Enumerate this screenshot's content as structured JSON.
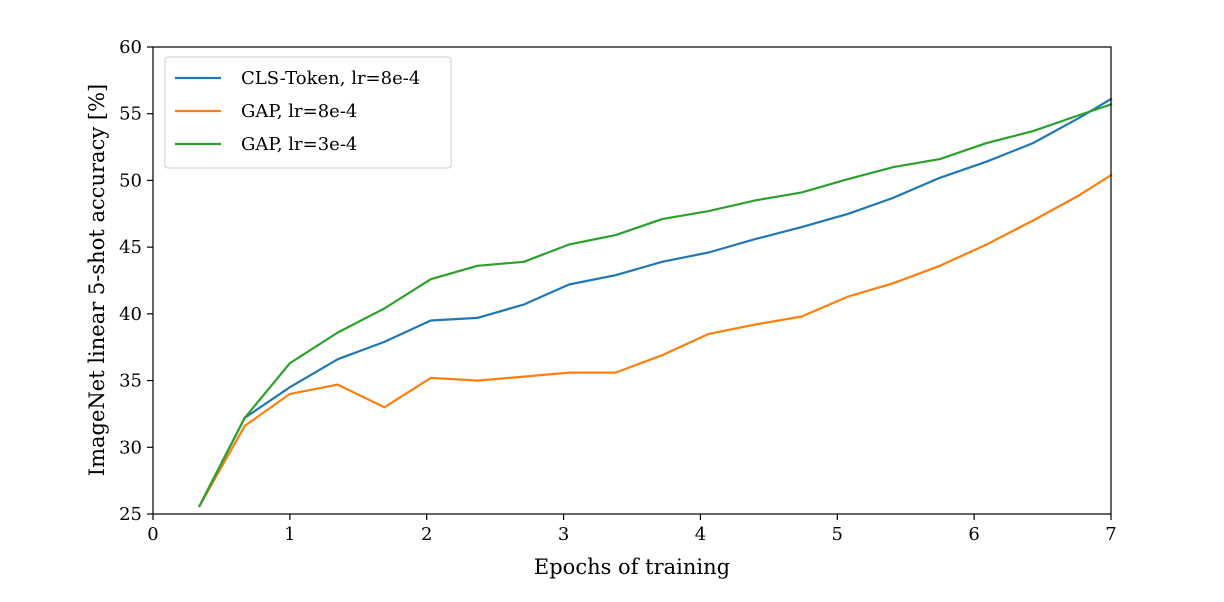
{
  "chart_data": {
    "type": "line",
    "title": "",
    "xlabel": "Epochs of training",
    "ylabel": "ImageNet linear 5-shot accuracy [%]",
    "xlim": [
      0,
      7
    ],
    "ylim": [
      25,
      60
    ],
    "xticks": [
      0,
      1,
      2,
      3,
      4,
      5,
      6,
      7
    ],
    "yticks": [
      25,
      30,
      35,
      40,
      45,
      50,
      55,
      60
    ],
    "grid": false,
    "legend_position": "top-left",
    "series": [
      {
        "name": "CLS-Token, lr=8e-4",
        "color": "#1f77b4",
        "x": [
          0.34,
          0.67,
          1.0,
          1.35,
          1.69,
          2.03,
          2.37,
          2.71,
          3.04,
          3.38,
          3.72,
          4.06,
          4.4,
          4.74,
          5.08,
          5.41,
          5.75,
          6.09,
          6.43,
          6.77,
          7.0
        ],
        "y": [
          25.6,
          32.2,
          34.5,
          36.6,
          37.9,
          39.5,
          39.7,
          40.7,
          42.2,
          42.9,
          43.9,
          44.6,
          45.6,
          46.5,
          47.5,
          48.7,
          50.2,
          51.4,
          52.8,
          54.7,
          56.1
        ]
      },
      {
        "name": "GAP, lr=8e-4",
        "color": "#ff7f0e",
        "x": [
          0.34,
          0.67,
          1.0,
          1.35,
          1.69,
          2.03,
          2.37,
          2.71,
          3.04,
          3.38,
          3.72,
          4.06,
          4.4,
          4.74,
          5.08,
          5.41,
          5.75,
          6.09,
          6.43,
          6.77,
          7.0
        ],
        "y": [
          25.6,
          31.6,
          34.0,
          34.7,
          33.0,
          35.2,
          35.0,
          35.3,
          35.6,
          35.6,
          36.9,
          38.5,
          39.2,
          39.8,
          41.3,
          42.3,
          43.6,
          45.2,
          47.0,
          48.9,
          50.4
        ]
      },
      {
        "name": "GAP, lr=3e-4",
        "color": "#2ca02c",
        "x": [
          0.34,
          0.67,
          1.0,
          1.35,
          1.69,
          2.03,
          2.37,
          2.71,
          3.04,
          3.38,
          3.72,
          4.06,
          4.4,
          4.74,
          5.08,
          5.41,
          5.75,
          6.09,
          6.43,
          6.77,
          7.0
        ],
        "y": [
          25.6,
          32.2,
          36.3,
          38.6,
          40.4,
          42.6,
          43.6,
          43.9,
          45.2,
          45.9,
          47.1,
          47.7,
          48.5,
          49.1,
          50.1,
          51.0,
          51.6,
          52.8,
          53.7,
          54.9,
          55.7
        ]
      }
    ]
  }
}
